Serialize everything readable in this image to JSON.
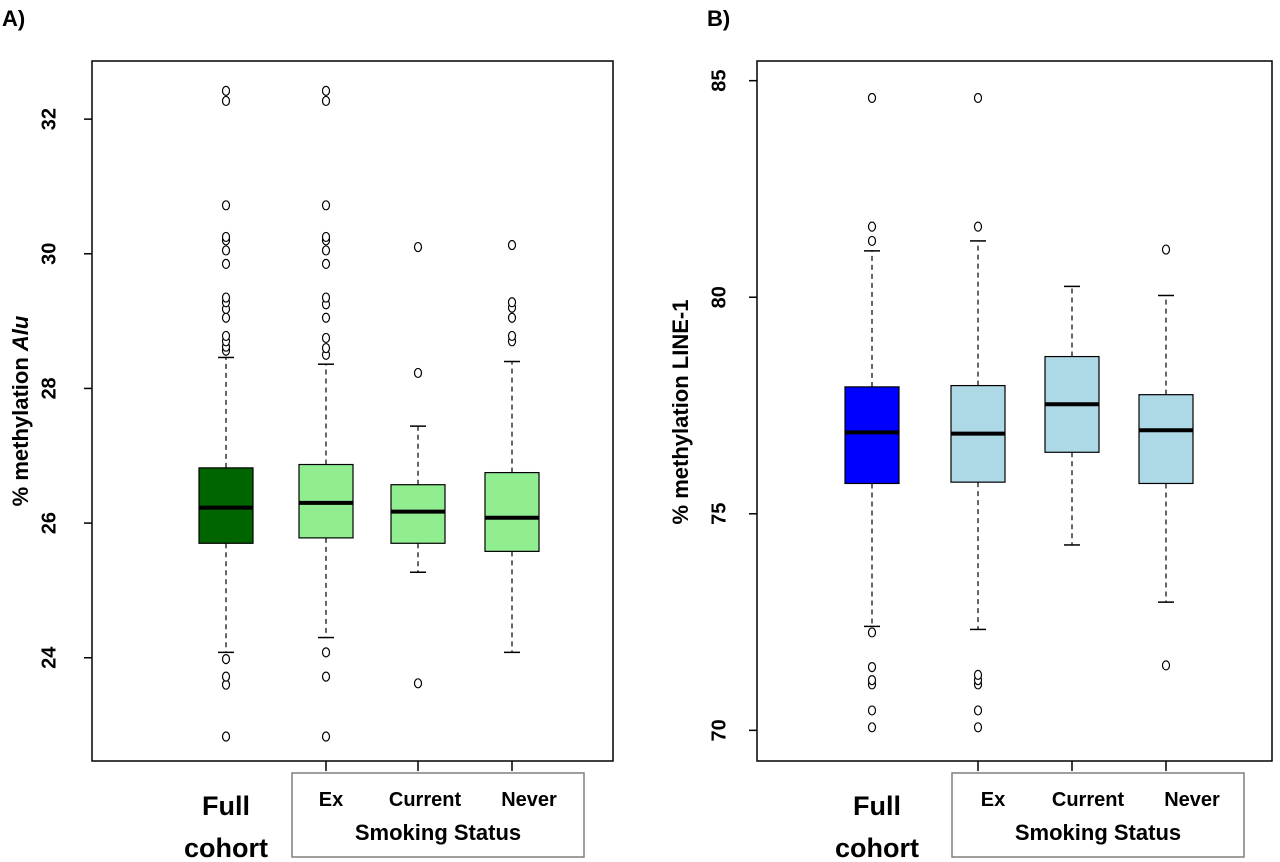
{
  "chart_data": [
    {
      "type": "box",
      "panel_label": "A)",
      "ylabel_prefix": "% methylation ",
      "ylabel_italic": "Alu",
      "ylim": [
        22.6,
        32.7
      ],
      "y_ticks": [
        "24",
        "26",
        "28",
        "30",
        "32"
      ],
      "full_label_line1": "Full",
      "full_label_line2": "cohort",
      "group_title": "Smoking Status",
      "categories": [
        "Full cohort",
        "Ex",
        "Current",
        "Never"
      ],
      "colors": [
        "#006400",
        "#90EE90",
        "#90EE90",
        "#90EE90"
      ],
      "boxes": [
        {
          "whisker_low": 24.08,
          "q1": 25.7,
          "median": 26.23,
          "q3": 26.82,
          "whisker_high": 28.46,
          "outliers": [
            22.83,
            23.6,
            23.72,
            23.98,
            28.56,
            28.62,
            28.7,
            28.78,
            29.05,
            29.18,
            29.28,
            29.35,
            29.85,
            30.05,
            30.2,
            30.25,
            30.72,
            32.27,
            32.42
          ]
        },
        {
          "whisker_low": 24.3,
          "q1": 25.78,
          "median": 26.3,
          "q3": 26.87,
          "whisker_high": 28.36,
          "outliers": [
            22.83,
            23.72,
            24.08,
            28.5,
            28.6,
            28.75,
            29.05,
            29.25,
            29.35,
            29.85,
            30.05,
            30.2,
            30.25,
            30.72,
            32.27,
            32.42
          ]
        },
        {
          "whisker_low": 25.27,
          "q1": 25.7,
          "median": 26.17,
          "q3": 26.57,
          "whisker_high": 27.44,
          "outliers": [
            23.62,
            28.23,
            30.1
          ]
        },
        {
          "whisker_low": 24.08,
          "q1": 25.58,
          "median": 26.08,
          "q3": 26.75,
          "whisker_high": 28.4,
          "outliers": [
            28.7,
            28.78,
            29.05,
            29.2,
            29.28,
            30.13
          ]
        }
      ]
    },
    {
      "type": "box",
      "panel_label": "B)",
      "ylabel_prefix": "% methylation LINE-1",
      "ylabel_italic": "",
      "ylim": [
        69.5,
        85.2
      ],
      "y_ticks": [
        "70",
        "75",
        "80",
        "85"
      ],
      "full_label_line1": "Full",
      "full_label_line2": "cohort",
      "group_title": "Smoking Status",
      "categories": [
        "Full cohort",
        "Ex",
        "Current",
        "Never"
      ],
      "colors": [
        "#0000FF",
        "#ADD8E6",
        "#ADD8E6",
        "#ADD8E6"
      ],
      "boxes": [
        {
          "whisker_low": 72.4,
          "q1": 75.7,
          "median": 76.88,
          "q3": 77.93,
          "whisker_high": 81.07,
          "outliers": [
            70.07,
            70.46,
            71.06,
            71.16,
            71.46,
            72.26,
            81.3,
            81.63,
            84.6
          ]
        },
        {
          "whisker_low": 72.33,
          "q1": 75.73,
          "median": 76.85,
          "q3": 77.96,
          "whisker_high": 81.3,
          "outliers": [
            70.07,
            70.46,
            71.06,
            71.16,
            71.28,
            81.63,
            84.6
          ]
        },
        {
          "whisker_low": 74.28,
          "q1": 76.42,
          "median": 77.53,
          "q3": 78.63,
          "whisker_high": 80.25,
          "outliers": []
        },
        {
          "whisker_low": 72.96,
          "q1": 75.7,
          "median": 76.93,
          "q3": 77.75,
          "whisker_high": 80.04,
          "outliers": [
            71.5,
            81.1
          ]
        }
      ]
    }
  ]
}
